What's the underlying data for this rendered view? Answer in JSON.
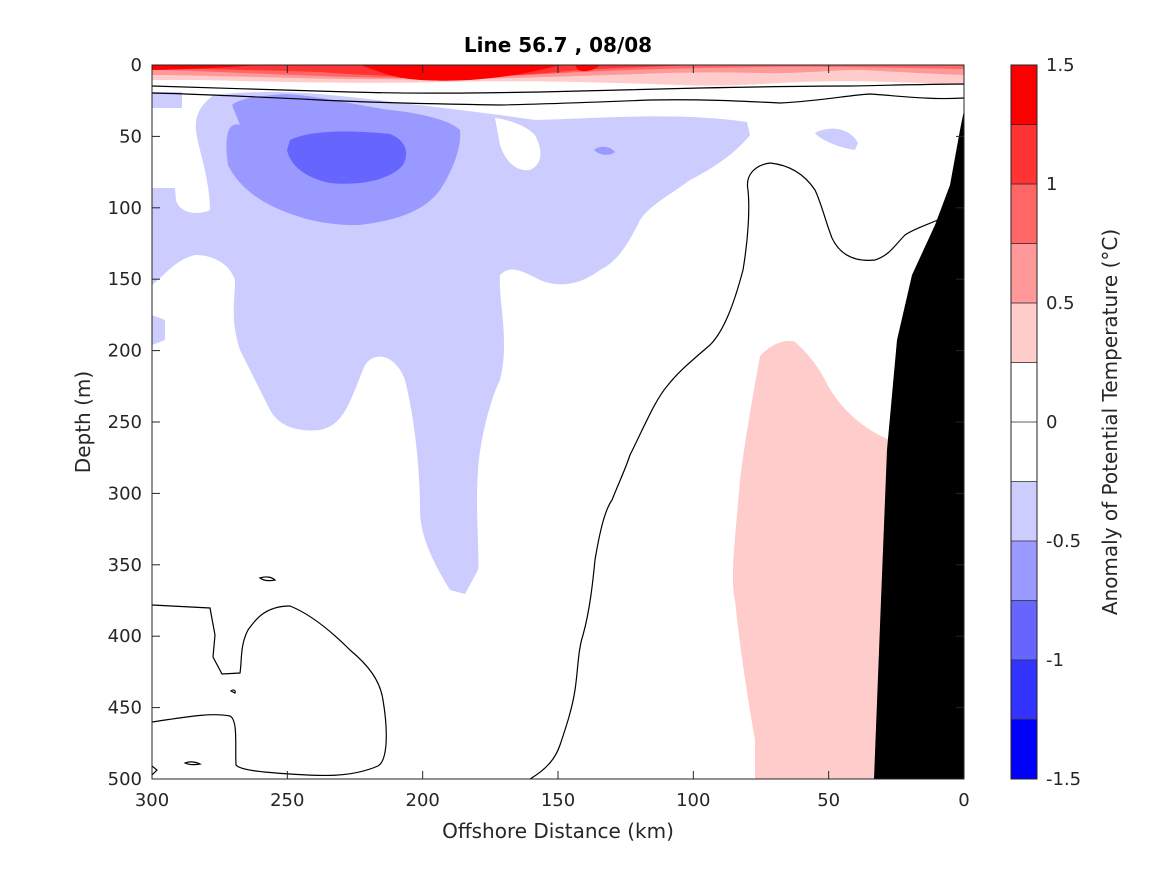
{
  "chart_data": {
    "type": "heatmap",
    "subtype": "filled-contour-section",
    "title": "Line 56.7 , 08/08",
    "xlabel": "Offshore Distance (km)",
    "ylabel": "Depth (m)",
    "xlim": [
      300,
      0
    ],
    "x_reversed": true,
    "ylim": [
      0,
      500
    ],
    "y_reversed": true,
    "xticks": [
      300,
      250,
      200,
      150,
      100,
      50,
      0
    ],
    "yticks": [
      0,
      50,
      100,
      150,
      200,
      250,
      300,
      350,
      400,
      450,
      500
    ],
    "grid": false,
    "colorbar": {
      "label": "Anomaly of Potential Temperature (°C)",
      "limits": [
        -1.5,
        1.5
      ],
      "ticks": [
        1.5,
        1,
        0.5,
        0,
        -0.5,
        -1,
        -1.5
      ],
      "levels": [
        -1.5,
        -1.25,
        -1.0,
        -0.75,
        -0.5,
        -0.25,
        0,
        0.25,
        0.5,
        0.75,
        1.0,
        1.25,
        1.5
      ],
      "colors": [
        "#0000ff",
        "#3333ff",
        "#6666ff",
        "#9999ff",
        "#ccccff",
        "#ffffff",
        "#ffffff",
        "#ffcccc",
        "#ff9999",
        "#ff6666",
        "#ff3333",
        "#ff0000"
      ]
    },
    "regions": [
      {
        "name": "surface warm anomaly",
        "min_anomaly": 0.25,
        "max_anomaly": 1.5,
        "x_range": [
          300,
          0
        ],
        "depth_range": [
          0,
          10
        ]
      },
      {
        "name": "subsurface cold anomaly",
        "min_anomaly": -1.0,
        "max_anomaly": -0.25,
        "x_range": [
          300,
          130
        ],
        "depth_range": [
          20,
          370
        ]
      },
      {
        "name": "core cold anomaly",
        "min_anomaly": -1.0,
        "max_anomaly": -0.75,
        "center": [
          225,
          65
        ]
      },
      {
        "name": "nearshore warm anomaly",
        "min_anomaly": 0.25,
        "max_anomaly": 0.5,
        "x_range": [
          80,
          25
        ],
        "depth_range": [
          190,
          500
        ]
      }
    ],
    "zero_contour": true,
    "bathymetry": {
      "color": "#000000",
      "x_range": [
        35,
        0
      ],
      "depth_at_coast": 35
    }
  }
}
